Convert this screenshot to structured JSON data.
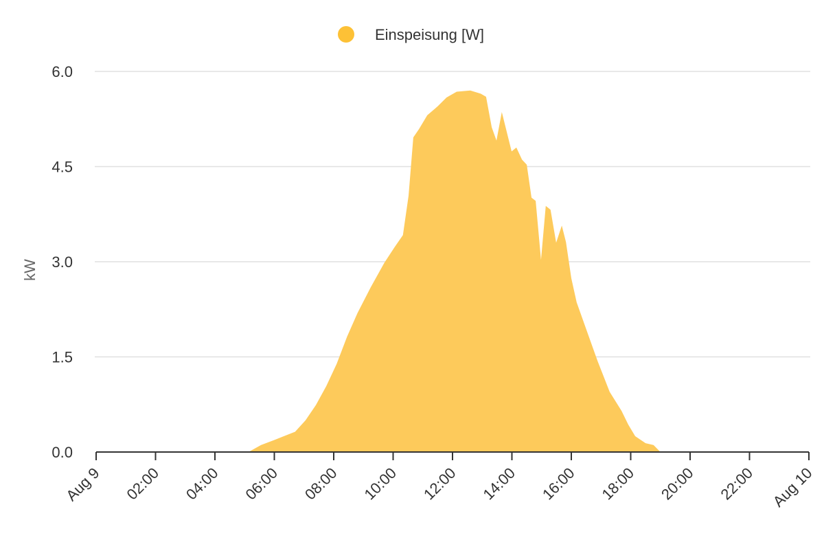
{
  "chart_data": {
    "type": "area",
    "ylabel": "kW",
    "x": [
      0,
      5.13,
      5.55,
      6.0,
      6.7,
      7.05,
      7.4,
      7.75,
      8.1,
      8.45,
      8.8,
      9.25,
      9.7,
      10.05,
      10.33,
      10.52,
      10.68,
      10.87,
      11.15,
      11.5,
      11.8,
      12.14,
      12.6,
      12.95,
      13.13,
      13.32,
      13.48,
      13.66,
      13.99,
      14.15,
      14.34,
      14.5,
      14.66,
      14.8,
      14.98,
      15.14,
      15.3,
      15.49,
      15.68,
      15.82,
      16.0,
      16.18,
      16.53,
      16.88,
      17.29,
      17.69,
      17.92,
      18.15,
      18.5,
      18.77,
      19.0,
      24
    ],
    "series": [
      {
        "name": "Einspeisung [W]",
        "color": "#fdca5b",
        "legend_color": "#fdc136",
        "values": [
          0,
          0,
          0.11,
          0.19,
          0.32,
          0.5,
          0.74,
          1.04,
          1.39,
          1.82,
          2.19,
          2.6,
          2.98,
          3.23,
          3.42,
          4.04,
          4.96,
          5.09,
          5.31,
          5.45,
          5.59,
          5.68,
          5.7,
          5.65,
          5.6,
          5.12,
          4.91,
          5.36,
          4.74,
          4.8,
          4.61,
          4.53,
          4.01,
          3.96,
          3.03,
          3.88,
          3.82,
          3.3,
          3.57,
          3.31,
          2.74,
          2.36,
          1.9,
          1.44,
          0.95,
          0.65,
          0.43,
          0.25,
          0.14,
          0.11,
          0,
          0
        ]
      }
    ],
    "xlim": [
      0,
      24
    ],
    "xticks": [
      {
        "value": 0,
        "label": "Aug 9"
      },
      {
        "value": 2,
        "label": "02:00"
      },
      {
        "value": 4,
        "label": "04:00"
      },
      {
        "value": 6,
        "label": "06:00"
      },
      {
        "value": 8,
        "label": "08:00"
      },
      {
        "value": 10,
        "label": "10:00"
      },
      {
        "value": 12,
        "label": "12:00"
      },
      {
        "value": 14,
        "label": "14:00"
      },
      {
        "value": 16,
        "label": "16:00"
      },
      {
        "value": 18,
        "label": "18:00"
      },
      {
        "value": 20,
        "label": "20:00"
      },
      {
        "value": 22,
        "label": "22:00"
      },
      {
        "value": 24,
        "label": "Aug 10"
      }
    ],
    "ylim": [
      0,
      6
    ],
    "yticks": [
      {
        "value": 0,
        "label": "0.0"
      },
      1.5,
      {
        "value": 3,
        "label": "3.0"
      },
      4.5,
      {
        "value": 6,
        "label": "6.0"
      }
    ],
    "grid": true,
    "legend": "top"
  }
}
